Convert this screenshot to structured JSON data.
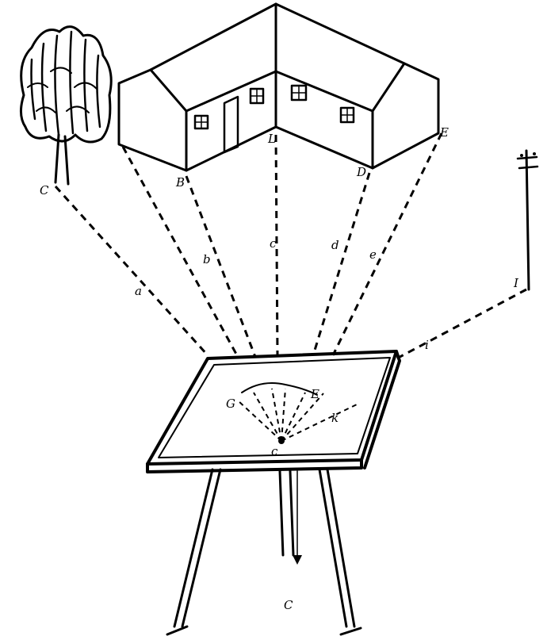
{
  "labels": {
    "tree_point": "C",
    "house_left_base": "B",
    "house_center_base": "L",
    "house_right_inner": "D",
    "house_right_base": "E",
    "pole_point": "I",
    "ray_a": "a",
    "ray_b": "b",
    "ray_c": "c",
    "ray_d": "d",
    "ray_e": "e",
    "ray_i": "i",
    "board_g": "G",
    "board_e": "E",
    "board_k": "k",
    "station": "c",
    "plumb": "C"
  }
}
